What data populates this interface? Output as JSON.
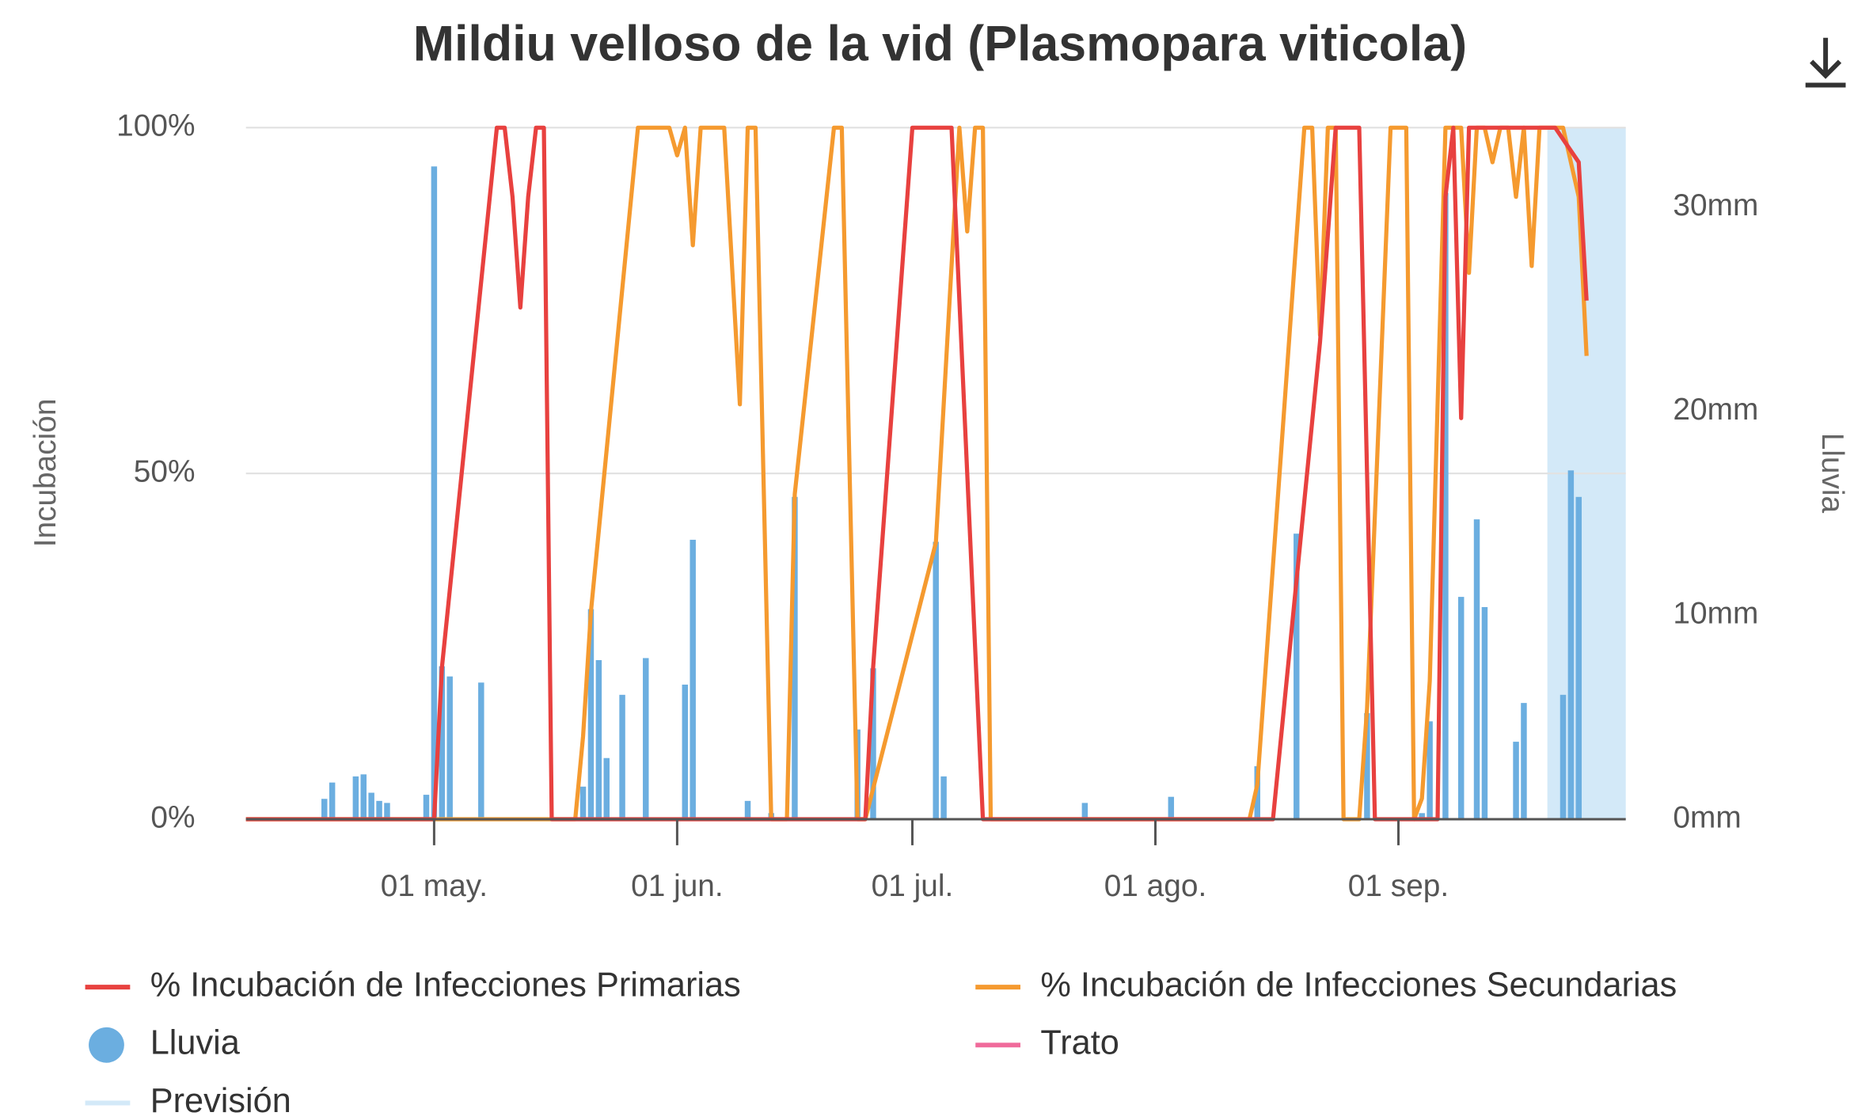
{
  "chart_data": {
    "type": "combo",
    "title": "Mildiu velloso de la vid (Plasmopara viticola)",
    "ylabel": "Incubación",
    "y2label": "Lluvia",
    "xlim": [
      "04-07",
      "09-30"
    ],
    "xticks": [
      {
        "value": "05-01",
        "label": "01 may."
      },
      {
        "value": "06-01",
        "label": "01 jun."
      },
      {
        "value": "07-01",
        "label": "01 jul."
      },
      {
        "value": "08-01",
        "label": "01 ago."
      },
      {
        "value": "09-01",
        "label": "01 sep."
      }
    ],
    "ylim": [
      0,
      100
    ],
    "yticks": [
      {
        "value": 0,
        "label": "0%"
      },
      {
        "value": 50,
        "label": "50%"
      },
      {
        "value": 100,
        "label": "100%"
      }
    ],
    "y2lim": [
      0,
      33.9
    ],
    "y2ticks": [
      {
        "value": 0,
        "label": "0mm"
      },
      {
        "value": 10,
        "label": "10mm"
      },
      {
        "value": 20,
        "label": "20mm"
      },
      {
        "value": 30,
        "label": "30mm"
      }
    ],
    "grid": true,
    "series": [
      {
        "name": "% Incubación de Infecciones Primarias",
        "type": "line",
        "color": "#e8413f",
        "x": [
          "04-07",
          "05-01",
          "05-02",
          "05-09",
          "05-10",
          "05-11",
          "05-12",
          "05-13",
          "05-14",
          "05-15",
          "05-16",
          "06-25",
          "06-26",
          "07-01",
          "07-06",
          "07-10",
          "08-16",
          "08-22",
          "08-24",
          "08-27",
          "08-29",
          "09-06",
          "09-07",
          "09-08",
          "09-09",
          "09-10",
          "09-12",
          "09-18",
          "09-21",
          "09-24",
          "09-25"
        ],
        "values": [
          0,
          0,
          22,
          100,
          100,
          90,
          74,
          90,
          100,
          100,
          0,
          0,
          22,
          100,
          100,
          0,
          0,
          69,
          100,
          100,
          0,
          0,
          90,
          100,
          58,
          100,
          100,
          100,
          100,
          95,
          75
        ]
      },
      {
        "name": "% Incubación de Infecciones Secundarias",
        "type": "line",
        "color": "#f59a2f",
        "x": [
          "04-07",
          "05-19",
          "05-20",
          "05-21",
          "05-27",
          "05-31",
          "06-01",
          "06-02",
          "06-03",
          "06-04",
          "06-05",
          "06-07",
          "06-09",
          "06-10",
          "06-11",
          "06-13",
          "06-15",
          "06-16",
          "06-21",
          "06-22",
          "06-24",
          "06-25",
          "07-04",
          "07-07",
          "07-08",
          "07-09",
          "07-10",
          "07-11",
          "08-13",
          "08-14",
          "08-20",
          "08-21",
          "08-22",
          "08-23",
          "08-24",
          "08-25",
          "08-27",
          "08-28",
          "08-31",
          "09-02",
          "09-03",
          "09-04",
          "09-05",
          "09-07",
          "09-09",
          "09-10",
          "09-11",
          "09-12",
          "09-13",
          "09-14",
          "09-15",
          "09-16",
          "09-17",
          "09-18",
          "09-19",
          "09-20",
          "09-22",
          "09-24",
          "09-25"
        ],
        "values": [
          0,
          0,
          12,
          30,
          100,
          100,
          96,
          100,
          83,
          100,
          100,
          100,
          60,
          100,
          100,
          0,
          0,
          47,
          100,
          100,
          0,
          0,
          40,
          100,
          85,
          100,
          100,
          0,
          0,
          5,
          100,
          100,
          70,
          100,
          100,
          0,
          0,
          16,
          100,
          100,
          0,
          3,
          20,
          100,
          100,
          79,
          100,
          100,
          95,
          100,
          100,
          90,
          100,
          80,
          100,
          100,
          100,
          90,
          67
        ]
      },
      {
        "name": "Lluvia",
        "type": "column",
        "axis": "y2",
        "color": "#6baee0",
        "x": [
          "04-17",
          "04-18",
          "04-21",
          "04-22",
          "04-23",
          "04-24",
          "04-25",
          "04-30",
          "05-01",
          "05-02",
          "05-03",
          "05-07",
          "05-20",
          "05-21",
          "05-22",
          "05-23",
          "05-25",
          "05-28",
          "06-02",
          "06-03",
          "06-10",
          "06-13",
          "06-16",
          "06-24",
          "06-26",
          "07-04",
          "07-05",
          "07-23",
          "08-03",
          "08-14",
          "08-19",
          "08-28",
          "09-04",
          "09-05",
          "09-07",
          "09-09",
          "09-11",
          "09-12",
          "09-16",
          "09-17",
          "09-22",
          "09-23",
          "09-24"
        ],
        "values": [
          1.0,
          1.8,
          2.1,
          2.2,
          1.3,
          0.9,
          0.8,
          1.2,
          32,
          7.5,
          7.0,
          6.7,
          1.6,
          10.3,
          7.8,
          3.0,
          6.1,
          7.9,
          6.6,
          13.7,
          0.9,
          0.3,
          15.8,
          4.4,
          7.4,
          13.6,
          2.1,
          0.8,
          1.1,
          2.6,
          14.0,
          5.2,
          0.3,
          4.8,
          30.7,
          10.9,
          14.7,
          10.4,
          3.8,
          5.7,
          6.1,
          17.1,
          15.8
        ]
      },
      {
        "name": "Trato",
        "type": "line",
        "color": "#f06a9b",
        "x": [],
        "values": []
      },
      {
        "name": "Previsión",
        "type": "band",
        "color": "#d3e9f8",
        "x": [
          "09-20",
          "09-30"
        ]
      }
    ]
  }
}
